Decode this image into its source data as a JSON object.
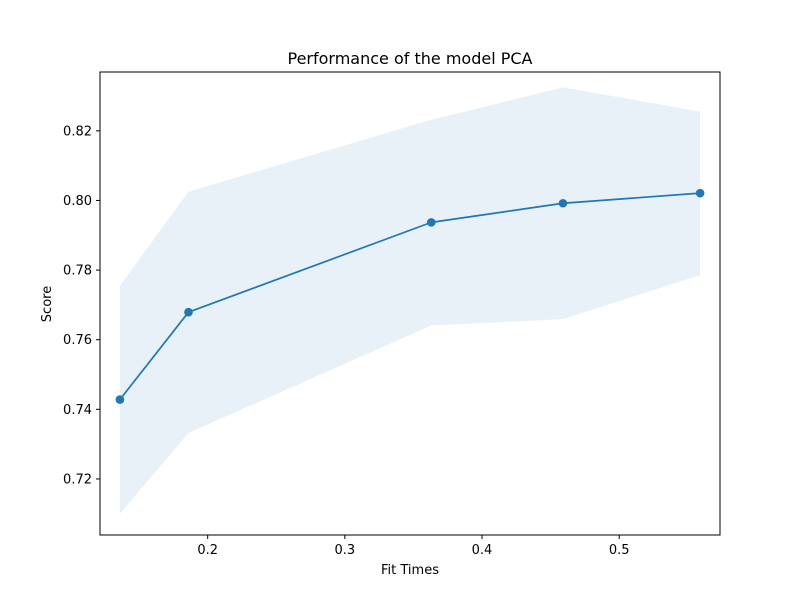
{
  "chart_data": {
    "type": "line",
    "title": "Performance of the model PCA",
    "xlabel": "Fit Times",
    "ylabel": "Score",
    "x": [
      0.136,
      0.186,
      0.363,
      0.459,
      0.559
    ],
    "series": [
      {
        "values": [
          0.7428,
          0.7679,
          0.7937,
          0.7992,
          0.8021
        ],
        "upper": [
          0.7755,
          0.8025,
          0.8232,
          0.8325,
          0.8255
        ],
        "lower": [
          0.71,
          0.7332,
          0.7641,
          0.7659,
          0.7786
        ],
        "color": "#1f77b4",
        "band_color": "#1f77b4",
        "band_opacity": 0.1
      }
    ],
    "xlim": [
      0.1215,
      0.5735
    ],
    "ylim": [
      0.7039,
      0.8369
    ],
    "xticks": [
      0.2,
      0.3,
      0.4,
      0.5
    ],
    "xtick_labels": [
      "0.2",
      "0.3",
      "0.4",
      "0.5"
    ],
    "yticks": [
      0.72,
      0.74,
      0.76,
      0.78,
      0.8,
      0.82
    ],
    "ytick_labels": [
      "0.72",
      "0.74",
      "0.76",
      "0.78",
      "0.80",
      "0.82"
    ],
    "grid": false,
    "legend": false
  }
}
